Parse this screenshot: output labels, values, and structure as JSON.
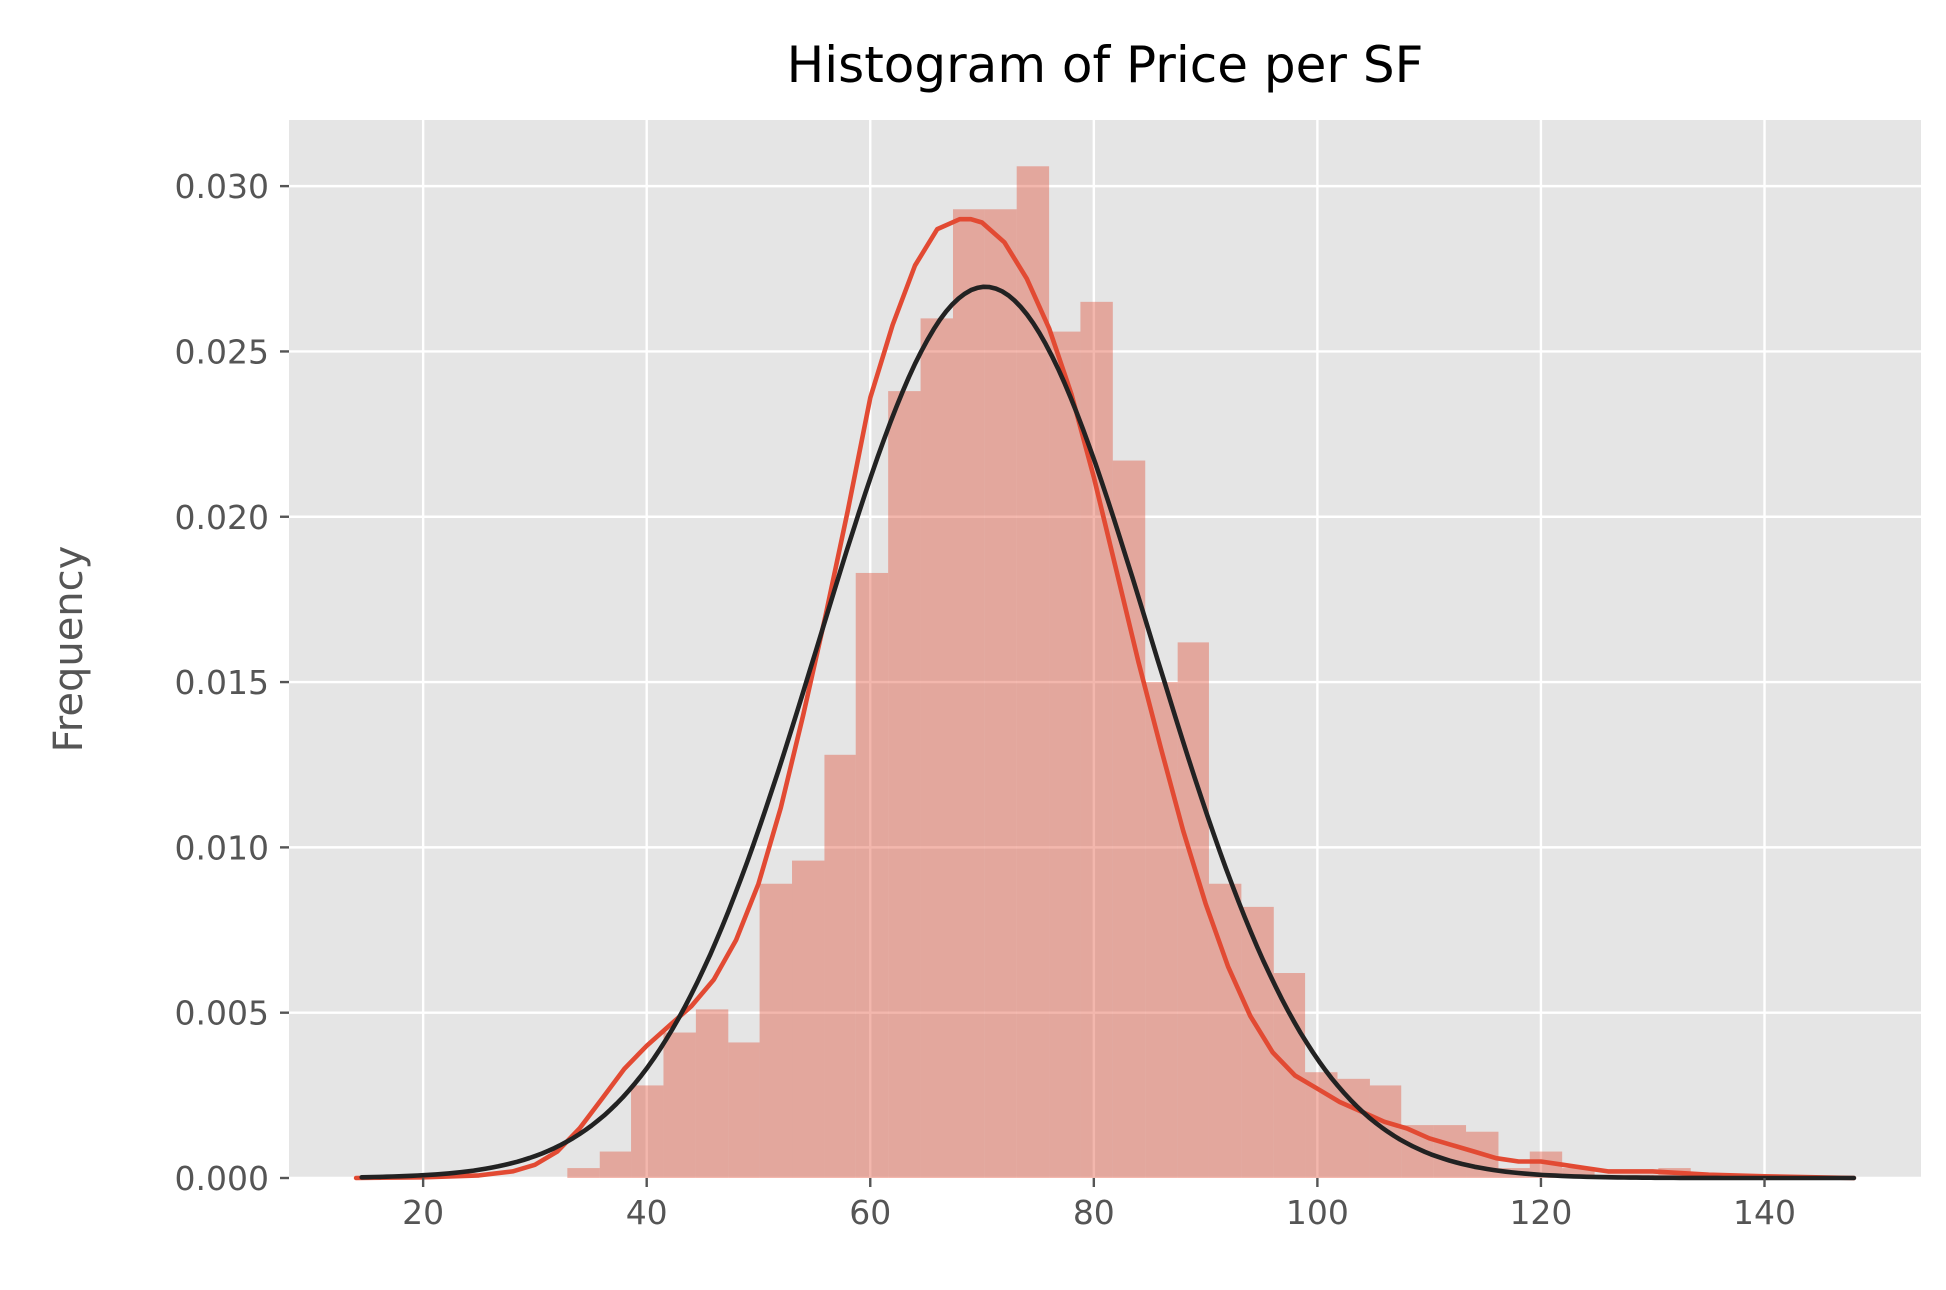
{
  "chart_data": {
    "type": "bar",
    "title": "Histogram of Price per SF",
    "xlabel": "",
    "ylabel": "Frequency",
    "xlim": [
      8,
      154
    ],
    "ylim": [
      0,
      0.032
    ],
    "x_ticks": [
      20,
      40,
      60,
      80,
      100,
      120,
      140
    ],
    "y_ticks": [
      0.0,
      0.005,
      0.01,
      0.015,
      0.02,
      0.025,
      0.03
    ],
    "y_tick_labels": [
      "0.000",
      "0.005",
      "0.010",
      "0.015",
      "0.020",
      "0.025",
      "0.030"
    ],
    "grid": true,
    "colors": {
      "bars": "#E24A33",
      "kde": "#E24A33",
      "normal_fit": "#222222",
      "background": "#E5E5E5"
    },
    "histogram": {
      "bin_edges": [
        32.9,
        35.8,
        38.6,
        41.5,
        44.4,
        47.3,
        50.1,
        53.0,
        55.9,
        58.7,
        61.6,
        64.5,
        67.4,
        70.2,
        73.1,
        76.0,
        78.8,
        81.7,
        84.6,
        87.5,
        90.3,
        93.2,
        96.1,
        98.9,
        101.8,
        104.7,
        107.5,
        110.4,
        113.3,
        116.2,
        119.0,
        121.9,
        124.8,
        127.6,
        130.5,
        133.4
      ],
      "values": [
        0.0003,
        0.0008,
        0.0028,
        0.0044,
        0.0051,
        0.0041,
        0.0089,
        0.0096,
        0.0128,
        0.0183,
        0.0238,
        0.026,
        0.0293,
        0.0293,
        0.0306,
        0.0256,
        0.0265,
        0.0217,
        0.015,
        0.0162,
        0.0089,
        0.0082,
        0.0062,
        0.0032,
        0.003,
        0.0028,
        0.0016,
        0.0016,
        0.0014,
        0.0003,
        0.0008,
        0.0003,
        0.0001,
        0.0001,
        0.0003
      ]
    },
    "series": [
      {
        "kind": "kde",
        "x": [
          14,
          20,
          25,
          28,
          30,
          32,
          34,
          36,
          38,
          40,
          42,
          44,
          46,
          48,
          50,
          52,
          54,
          56,
          58,
          60,
          62,
          64,
          66,
          68,
          69,
          70,
          72,
          74,
          76,
          78,
          80,
          82,
          84,
          86,
          88,
          90,
          92,
          94,
          96,
          98,
          100,
          102,
          104,
          106,
          108,
          110,
          112,
          114,
          116,
          118,
          120,
          122,
          124,
          126,
          128,
          130,
          135,
          140,
          148
        ],
        "y": [
          0.0,
          2e-05,
          8e-05,
          0.0002,
          0.0004,
          0.0008,
          0.0015,
          0.0024,
          0.0033,
          0.004,
          0.0046,
          0.0052,
          0.006,
          0.0072,
          0.0089,
          0.0112,
          0.014,
          0.017,
          0.0202,
          0.0236,
          0.0258,
          0.0276,
          0.0287,
          0.029,
          0.029,
          0.0289,
          0.0283,
          0.0272,
          0.0257,
          0.0237,
          0.0212,
          0.0184,
          0.0156,
          0.013,
          0.0105,
          0.0083,
          0.0064,
          0.0049,
          0.0038,
          0.0031,
          0.0027,
          0.0023,
          0.002,
          0.0017,
          0.0015,
          0.0012,
          0.001,
          0.0008,
          0.0006,
          0.0005,
          0.0005,
          0.0004,
          0.0003,
          0.0002,
          0.0002,
          0.0002,
          0.0001,
          5e-05,
          0.0
        ]
      },
      {
        "kind": "normal_fit",
        "mean": 70.3,
        "std": 14.8,
        "x_range": [
          14.5,
          148
        ]
      }
    ]
  }
}
